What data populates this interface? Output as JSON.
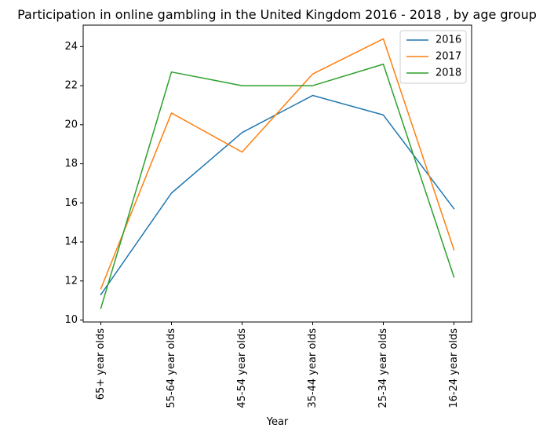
{
  "chart_data": {
    "type": "line",
    "title": "Participation in online gambling in the United Kingdom 2016 - 2018 , by age group",
    "xlabel": "Year",
    "ylabel": "",
    "categories": [
      "65+ year olds",
      "55-64 year olds",
      "45-54 year olds",
      "35-44 year olds",
      "25-34 year olds",
      "16-24 year olds"
    ],
    "ylim": [
      9.9,
      25.1
    ],
    "yticks": [
      10,
      12,
      14,
      16,
      18,
      20,
      22,
      24
    ],
    "grid": false,
    "legend_position": "top-right",
    "series": [
      {
        "name": "2016",
        "color": "#1f77b4",
        "values": [
          11.3,
          16.5,
          19.6,
          21.5,
          20.5,
          15.7
        ]
      },
      {
        "name": "2017",
        "color": "#ff7f0e",
        "values": [
          11.6,
          20.6,
          18.6,
          22.6,
          24.4,
          13.6
        ]
      },
      {
        "name": "2018",
        "color": "#2ca02c",
        "values": [
          10.6,
          22.7,
          22.0,
          22.0,
          23.1,
          12.2
        ]
      }
    ]
  }
}
